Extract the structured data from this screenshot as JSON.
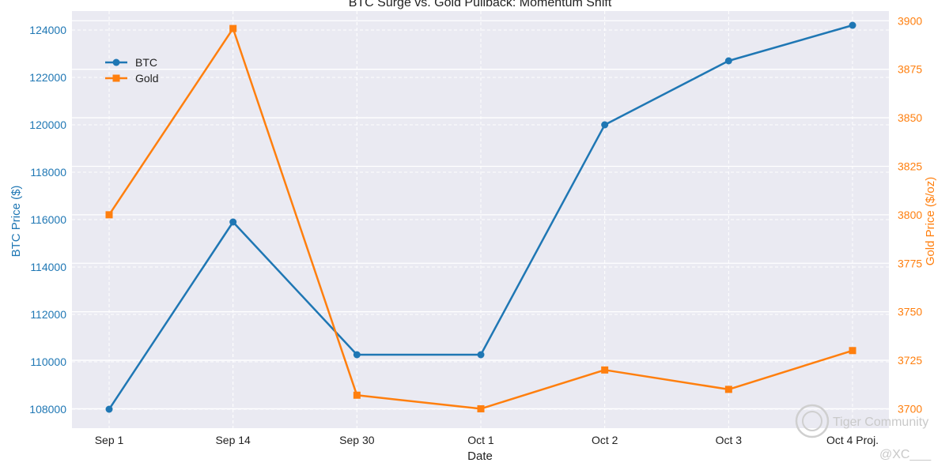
{
  "chart_data": {
    "type": "line",
    "title": "BTC Surge vs. Gold Pullback: Momentum Shift",
    "xlabel": "Date",
    "categories": [
      "Sep 1",
      "Sep 14",
      "Sep 30",
      "Oct 1",
      "Oct 2",
      "Oct 3",
      "Oct 4 Proj."
    ],
    "grid": true,
    "legend_position": "top-left",
    "series": [
      {
        "name": "BTC",
        "axis": "left",
        "marker": "circle",
        "color": "#1f77b4",
        "values": [
          108000,
          115900,
          110300,
          110300,
          120000,
          122700,
          124200
        ]
      },
      {
        "name": "Gold",
        "axis": "right",
        "marker": "square",
        "color": "#ff7f0e",
        "values": [
          3800,
          3896,
          3707,
          3700,
          3720,
          3710,
          3730
        ]
      }
    ],
    "y_left": {
      "label": "BTC Price ($)",
      "range": [
        107200,
        124800
      ],
      "ticks": [
        108000,
        110000,
        112000,
        114000,
        116000,
        118000,
        120000,
        122000,
        124000
      ],
      "color": "#1f77b4"
    },
    "y_right": {
      "label": "Gold Price ($/oz)",
      "range": [
        3690,
        3905
      ],
      "ticks": [
        3700,
        3725,
        3750,
        3775,
        3800,
        3825,
        3850,
        3875,
        3900
      ],
      "color": "#ff7f0e"
    }
  },
  "watermark": {
    "brand": "Tiger Community",
    "handle": "@XC___"
  }
}
